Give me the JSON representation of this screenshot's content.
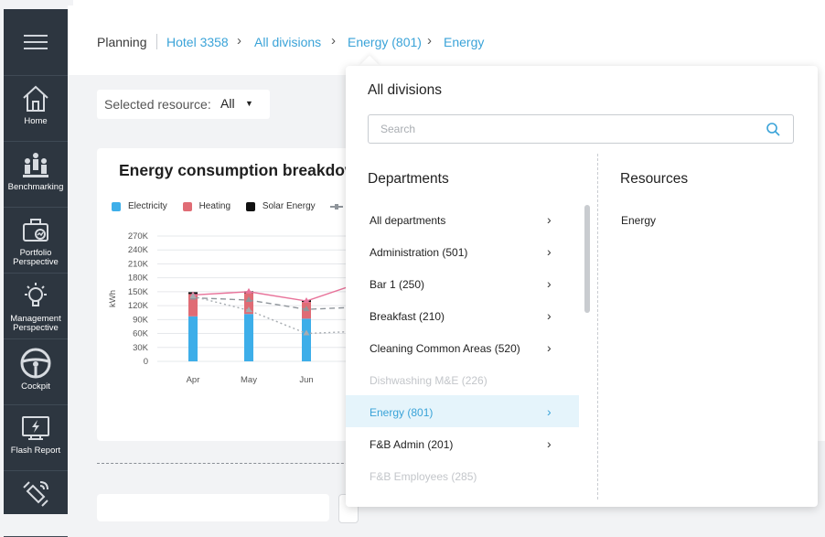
{
  "breadcrumb": {
    "planning": "Planning",
    "hotel": "Hotel 3358",
    "divisions": "All divisions",
    "department": "Energy (801)",
    "resource": "Energy"
  },
  "sidebar": {
    "menu_icon": "hamburger-menu-icon",
    "items": [
      {
        "label": "Home",
        "icon": "home-icon"
      },
      {
        "label": "Benchmarking",
        "icon": "benchmarking-icon"
      },
      {
        "label": "Portfolio Perspective",
        "icon": "portfolio-icon"
      },
      {
        "label": "Management Perspective",
        "icon": "lightbulb-icon"
      },
      {
        "label": "Cockpit",
        "icon": "steering-wheel-icon"
      },
      {
        "label": "Flash Report",
        "icon": "flash-report-icon"
      },
      {
        "label": "",
        "icon": "satellite-icon"
      }
    ]
  },
  "resource_selector": {
    "label": "Selected resource:",
    "value": "All"
  },
  "chart_card": {
    "title": "Energy consumption breakdow"
  },
  "chart_data": {
    "type": "bar",
    "categories": [
      "Apr",
      "May",
      "Jun"
    ],
    "ylabel": "kWh",
    "ylim": [
      0,
      270000
    ],
    "yticks": [
      "270K",
      "240K",
      "210K",
      "180K",
      "150K",
      "120K",
      "90K",
      "60K",
      "30K",
      "0"
    ],
    "series": [
      {
        "name": "Electricity",
        "color": "#3daee9",
        "values": [
          97000,
          102000,
          92000
        ]
      },
      {
        "name": "Heating",
        "color": "#e06c75",
        "values": [
          48000,
          45000,
          36000
        ]
      },
      {
        "name": "Solar Energy",
        "color": "#111111",
        "values": [
          4000,
          4000,
          4000
        ]
      }
    ],
    "lines": [
      {
        "name": "",
        "color": "#e8739a",
        "style": "solid",
        "values": [
          143000,
          150000,
          130000
        ]
      },
      {
        "name": "",
        "color": "#8f959b",
        "style": "dashed",
        "values": [
          137000,
          132000,
          112000
        ]
      },
      {
        "name": "",
        "color": "#a7acb1",
        "style": "dotted",
        "values": [
          140000,
          110000,
          60000
        ]
      }
    ],
    "grid": true
  },
  "dropdown": {
    "title": "All divisions",
    "search_placeholder": "Search",
    "departments_header": "Departments",
    "resources_header": "Resources",
    "departments": [
      {
        "label": "All departments",
        "state": "normal"
      },
      {
        "label": "Administration (501)",
        "state": "normal"
      },
      {
        "label": "Bar 1 (250)",
        "state": "normal"
      },
      {
        "label": "Breakfast (210)",
        "state": "normal"
      },
      {
        "label": "Cleaning Common Areas (520)",
        "state": "normal"
      },
      {
        "label": "Dishwashing M&E (226)",
        "state": "disabled"
      },
      {
        "label": "Energy (801)",
        "state": "active"
      },
      {
        "label": "F&B Admin (201)",
        "state": "normal"
      },
      {
        "label": "F&B Employees (285)",
        "state": "disabled"
      }
    ],
    "resources": [
      "Energy"
    ]
  }
}
